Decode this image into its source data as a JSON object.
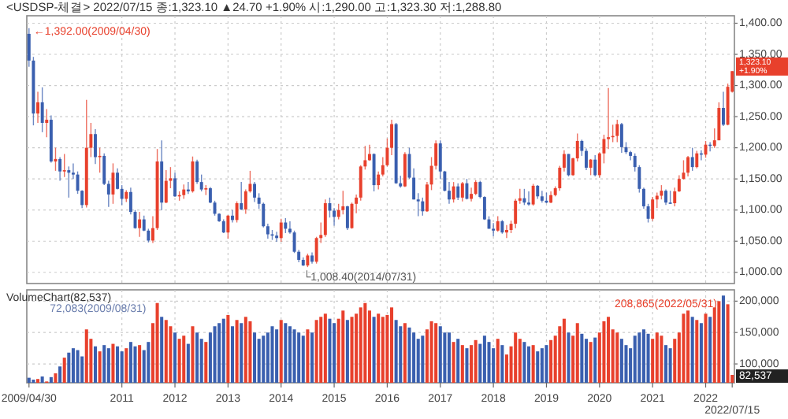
{
  "chart_data": [
    {
      "type": "candlestick",
      "title": "<USDSP-체결> 2022/07/15 종:1,323.10 ▲24.70 +1.90% 시:1,290.00 고:1,323.30 저:1,288.80",
      "categories": [
        "2009/04/30",
        null,
        null,
        null,
        null,
        null,
        null,
        null,
        null,
        null,
        null,
        null,
        null,
        null,
        null,
        null,
        null,
        null,
        null,
        null,
        null,
        "2011",
        null,
        null,
        null,
        null,
        null,
        null,
        null,
        null,
        null,
        null,
        null,
        "2012",
        null,
        null,
        null,
        null,
        null,
        null,
        null,
        null,
        null,
        null,
        null,
        "2013",
        null,
        null,
        null,
        null,
        null,
        null,
        null,
        null,
        null,
        null,
        null,
        "2014",
        null,
        null,
        null,
        null,
        null,
        null,
        null,
        null,
        null,
        null,
        null,
        "2015",
        null,
        null,
        null,
        null,
        null,
        null,
        null,
        null,
        null,
        null,
        null,
        "2016",
        null,
        null,
        null,
        null,
        null,
        null,
        null,
        null,
        null,
        null,
        null,
        "2017",
        null,
        null,
        null,
        null,
        null,
        null,
        null,
        null,
        null,
        null,
        null,
        "2018",
        null,
        null,
        null,
        null,
        null,
        null,
        null,
        null,
        null,
        null,
        null,
        "2019",
        null,
        null,
        null,
        null,
        null,
        null,
        null,
        null,
        null,
        null,
        null,
        "2020",
        null,
        null,
        null,
        null,
        null,
        null,
        null,
        null,
        null,
        null,
        null,
        "2021",
        null,
        null,
        null,
        null,
        null,
        null,
        null,
        null,
        null,
        null,
        null,
        "2022",
        null,
        null,
        null,
        null,
        null,
        "2022/07/15"
      ],
      "ohlc": [
        [
          1383,
          1392,
          1330,
          1340
        ],
        [
          1340,
          1346,
          1236,
          1255
        ],
        [
          1255,
          1290,
          1240,
          1273
        ],
        [
          1273,
          1297,
          1225,
          1240
        ],
        [
          1240,
          1262,
          1217,
          1245
        ],
        [
          1245,
          1252,
          1176,
          1178
        ],
        [
          1178,
          1200,
          1163,
          1182
        ],
        [
          1182,
          1185,
          1147,
          1162
        ],
        [
          1162,
          1190,
          1153,
          1164
        ],
        [
          1164,
          1170,
          1120,
          1160
        ],
        [
          1160,
          1175,
          1150,
          1157
        ],
        [
          1157,
          1162,
          1126,
          1131
        ],
        [
          1131,
          1132,
          1103,
          1108
        ],
        [
          1108,
          1277,
          1104,
          1200
        ],
        [
          1200,
          1240,
          1185,
          1222
        ],
        [
          1222,
          1230,
          1174,
          1185
        ],
        [
          1185,
          1200,
          1160,
          1187
        ],
        [
          1187,
          1191,
          1140,
          1142
        ],
        [
          1142,
          1147,
          1105,
          1125
        ],
        [
          1125,
          1175,
          1110,
          1160
        ],
        [
          1160,
          1167,
          1133,
          1134
        ],
        [
          1134,
          1140,
          1108,
          1118
        ],
        [
          1118,
          1132,
          1113,
          1129
        ],
        [
          1129,
          1136,
          1093,
          1097
        ],
        [
          1097,
          1100,
          1070,
          1071
        ],
        [
          1071,
          1097,
          1057,
          1085
        ],
        [
          1085,
          1091,
          1066,
          1067
        ],
        [
          1067,
          1070,
          1048,
          1051
        ],
        [
          1051,
          1090,
          1047,
          1071
        ],
        [
          1071,
          1198,
          1068,
          1178
        ],
        [
          1178,
          1212,
          1100,
          1112
        ],
        [
          1112,
          1164,
          1111,
          1147
        ],
        [
          1147,
          1169,
          1135,
          1151
        ],
        [
          1151,
          1160,
          1121,
          1122
        ],
        [
          1122,
          1130,
          1115,
          1124
        ],
        [
          1124,
          1141,
          1118,
          1133
        ],
        [
          1133,
          1145,
          1126,
          1130
        ],
        [
          1130,
          1186,
          1128,
          1178
        ],
        [
          1178,
          1181,
          1142,
          1145
        ],
        [
          1145,
          1157,
          1130,
          1133
        ],
        [
          1133,
          1140,
          1124,
          1135
        ],
        [
          1135,
          1137,
          1111,
          1112
        ],
        [
          1112,
          1115,
          1091,
          1094
        ],
        [
          1094,
          1095,
          1081,
          1082
        ],
        [
          1082,
          1085,
          1063,
          1064
        ],
        [
          1064,
          1092,
          1054,
          1091
        ],
        [
          1091,
          1100,
          1080,
          1084
        ],
        [
          1084,
          1114,
          1080,
          1111
        ],
        [
          1111,
          1145,
          1100,
          1101
        ],
        [
          1101,
          1133,
          1094,
          1130
        ],
        [
          1130,
          1163,
          1128,
          1142
        ],
        [
          1142,
          1145,
          1113,
          1120
        ],
        [
          1120,
          1127,
          1102,
          1110
        ],
        [
          1110,
          1112,
          1072,
          1074
        ],
        [
          1074,
          1078,
          1054,
          1061
        ],
        [
          1061,
          1068,
          1052,
          1059
        ],
        [
          1059,
          1065,
          1049,
          1055
        ],
        [
          1055,
          1086,
          1049,
          1080
        ],
        [
          1080,
          1087,
          1063,
          1070
        ],
        [
          1070,
          1082,
          1062,
          1064
        ],
        [
          1064,
          1067,
          1031,
          1033
        ],
        [
          1033,
          1036,
          1016,
          1020
        ],
        [
          1020,
          1024,
          1010,
          1011
        ],
        [
          1011,
          1030,
          1008.4,
          1027
        ],
        [
          1027,
          1032,
          1014,
          1017
        ],
        [
          1017,
          1057,
          1014,
          1055
        ],
        [
          1055,
          1080,
          1047,
          1060
        ],
        [
          1060,
          1117,
          1057,
          1111
        ],
        [
          1111,
          1120,
          1088,
          1099
        ],
        [
          1099,
          1103,
          1075,
          1089
        ],
        [
          1089,
          1110,
          1085,
          1100
        ],
        [
          1100,
          1131,
          1093,
          1106
        ],
        [
          1106,
          1107,
          1068,
          1071
        ],
        [
          1071,
          1112,
          1070,
          1110
        ],
        [
          1110,
          1125,
          1095,
          1120
        ],
        [
          1120,
          1172,
          1115,
          1170
        ],
        [
          1170,
          1203,
          1165,
          1180
        ],
        [
          1180,
          1205,
          1179,
          1190
        ],
        [
          1190,
          1191,
          1130,
          1140
        ],
        [
          1140,
          1162,
          1133,
          1157
        ],
        [
          1157,
          1185,
          1154,
          1172
        ],
        [
          1172,
          1215,
          1170,
          1200
        ],
        [
          1200,
          1245,
          1188,
          1238
        ],
        [
          1238,
          1240,
          1142,
          1143
        ],
        [
          1143,
          1155,
          1136,
          1138
        ],
        [
          1138,
          1193,
          1137,
          1190
        ],
        [
          1190,
          1200,
          1150,
          1152
        ],
        [
          1152,
          1167,
          1117,
          1117
        ],
        [
          1117,
          1127,
          1090,
          1114
        ],
        [
          1114,
          1120,
          1091,
          1098
        ],
        [
          1098,
          1145,
          1097,
          1141
        ],
        [
          1141,
          1185,
          1132,
          1171
        ],
        [
          1171,
          1212,
          1165,
          1207
        ],
        [
          1207,
          1212,
          1150,
          1162
        ],
        [
          1162,
          1163,
          1130,
          1131
        ],
        [
          1131,
          1145,
          1110,
          1117
        ],
        [
          1117,
          1145,
          1112,
          1138
        ],
        [
          1138,
          1143,
          1116,
          1120
        ],
        [
          1120,
          1145,
          1114,
          1143
        ],
        [
          1143,
          1150,
          1117,
          1118
        ],
        [
          1118,
          1136,
          1114,
          1126
        ],
        [
          1126,
          1148,
          1124,
          1145
        ],
        [
          1145,
          1147,
          1119,
          1121
        ],
        [
          1121,
          1122,
          1084,
          1085
        ],
        [
          1085,
          1090,
          1070,
          1070
        ],
        [
          1070,
          1079,
          1058,
          1067
        ],
        [
          1067,
          1090,
          1065,
          1082
        ],
        [
          1082,
          1084,
          1062,
          1064
        ],
        [
          1064,
          1076,
          1055,
          1068
        ],
        [
          1068,
          1083,
          1063,
          1078
        ],
        [
          1078,
          1118,
          1071,
          1115
        ],
        [
          1115,
          1134,
          1110,
          1119
        ],
        [
          1119,
          1134,
          1108,
          1112
        ],
        [
          1112,
          1130,
          1107,
          1109
        ],
        [
          1109,
          1142,
          1107,
          1139
        ],
        [
          1139,
          1140,
          1118,
          1122
        ],
        [
          1122,
          1131,
          1112,
          1115
        ],
        [
          1115,
          1128,
          1111,
          1112
        ],
        [
          1112,
          1130,
          1111,
          1124
        ],
        [
          1124,
          1138,
          1122,
          1135
        ],
        [
          1135,
          1171,
          1131,
          1168
        ],
        [
          1168,
          1196,
          1162,
          1190
        ],
        [
          1190,
          1190,
          1154,
          1156
        ],
        [
          1156,
          1184,
          1155,
          1183
        ],
        [
          1183,
          1223,
          1178,
          1211
        ],
        [
          1211,
          1213,
          1187,
          1195
        ],
        [
          1195,
          1199,
          1164,
          1168
        ],
        [
          1168,
          1182,
          1156,
          1181
        ],
        [
          1181,
          1188,
          1154,
          1156
        ],
        [
          1156,
          1193,
          1152,
          1191
        ],
        [
          1191,
          1221,
          1175,
          1214
        ],
        [
          1214,
          1296,
          1198,
          1217
        ],
        [
          1217,
          1237,
          1209,
          1219
        ],
        [
          1219,
          1245,
          1209,
          1238
        ],
        [
          1238,
          1240,
          1192,
          1201
        ],
        [
          1201,
          1209,
          1190,
          1193
        ],
        [
          1193,
          1195,
          1180,
          1187
        ],
        [
          1187,
          1191,
          1162,
          1169
        ],
        [
          1169,
          1172,
          1128,
          1134
        ],
        [
          1134,
          1136,
          1102,
          1106
        ],
        [
          1106,
          1110,
          1080,
          1086
        ],
        [
          1086,
          1121,
          1083,
          1117
        ],
        [
          1117,
          1128,
          1103,
          1123
        ],
        [
          1123,
          1140,
          1117,
          1131
        ],
        [
          1131,
          1133,
          1108,
          1112
        ],
        [
          1112,
          1131,
          1110,
          1111
        ],
        [
          1111,
          1136,
          1106,
          1130
        ],
        [
          1130,
          1156,
          1129,
          1150
        ],
        [
          1150,
          1180,
          1149,
          1160
        ],
        [
          1160,
          1187,
          1154,
          1185
        ],
        [
          1185,
          1200,
          1163,
          1169
        ],
        [
          1169,
          1195,
          1167,
          1191
        ],
        [
          1191,
          1196,
          1180,
          1189
        ],
        [
          1189,
          1211,
          1184,
          1205
        ],
        [
          1205,
          1209,
          1194,
          1203
        ],
        [
          1203,
          1231,
          1200,
          1212
        ],
        [
          1212,
          1273,
          1212,
          1264
        ],
        [
          1264,
          1290,
          1235,
          1237
        ],
        [
          1237,
          1303,
          1236,
          1298
        ],
        [
          1290,
          1323.3,
          1288.8,
          1323.1
        ]
      ],
      "ylim": [
        982,
        1412
      ],
      "yticks": [
        {
          "value": 1000,
          "label": "1,000.00"
        },
        {
          "value": 1050,
          "label": "1,050.00"
        },
        {
          "value": 1100,
          "label": "1,100.00"
        },
        {
          "value": 1150,
          "label": "1,150.00"
        },
        {
          "value": 1200,
          "label": "1,200.00"
        },
        {
          "value": 1250,
          "label": "1,250.00"
        },
        {
          "value": 1300,
          "label": "1,300.00"
        },
        {
          "value": 1350,
          "label": "1,350.00"
        },
        {
          "value": 1400,
          "label": "1,400.00"
        }
      ],
      "grid": true,
      "tick_labels": "y",
      "annotations": [
        "←1,392.00(2009/04/30)",
        "└1,008.40(2014/07/31)",
        "1,323.10",
        "+1.90%"
      ]
    },
    {
      "type": "bar",
      "title": "VolumeChart(82,537)",
      "categories": [
        "2009/04/30",
        null,
        null,
        null,
        null,
        null,
        null,
        null,
        null,
        null,
        null,
        null,
        null,
        null,
        null,
        null,
        null,
        null,
        null,
        null,
        null,
        "2011",
        null,
        null,
        null,
        null,
        null,
        null,
        null,
        null,
        null,
        null,
        null,
        "2012",
        null,
        null,
        null,
        null,
        null,
        null,
        null,
        null,
        null,
        null,
        null,
        "2013",
        null,
        null,
        null,
        null,
        null,
        null,
        null,
        null,
        null,
        null,
        null,
        "2014",
        null,
        null,
        null,
        null,
        null,
        null,
        null,
        null,
        null,
        null,
        null,
        "2015",
        null,
        null,
        null,
        null,
        null,
        null,
        null,
        null,
        null,
        null,
        null,
        "2016",
        null,
        null,
        null,
        null,
        null,
        null,
        null,
        null,
        null,
        null,
        null,
        "2017",
        null,
        null,
        null,
        null,
        null,
        null,
        null,
        null,
        null,
        null,
        null,
        "2018",
        null,
        null,
        null,
        null,
        null,
        null,
        null,
        null,
        null,
        null,
        null,
        "2019",
        null,
        null,
        null,
        null,
        null,
        null,
        null,
        null,
        null,
        null,
        null,
        "2020",
        null,
        null,
        null,
        null,
        null,
        null,
        null,
        null,
        null,
        null,
        null,
        "2021",
        null,
        null,
        null,
        null,
        null,
        null,
        null,
        null,
        null,
        null,
        null,
        "2022",
        null,
        null,
        null,
        null,
        null,
        "2022/07/15"
      ],
      "values": [
        78000,
        75000,
        76000,
        80000,
        72083,
        79000,
        85000,
        96000,
        110000,
        118000,
        125000,
        122000,
        112000,
        155000,
        140000,
        128000,
        120000,
        130000,
        125000,
        132000,
        128000,
        120000,
        125000,
        135000,
        128000,
        130000,
        122000,
        135000,
        165000,
        197000,
        175000,
        170000,
        160000,
        150000,
        140000,
        145000,
        132000,
        160000,
        150000,
        140000,
        135000,
        150000,
        160000,
        165000,
        172000,
        178000,
        160000,
        170000,
        165000,
        175000,
        168000,
        150000,
        140000,
        145000,
        150000,
        160000,
        155000,
        170000,
        165000,
        160000,
        155000,
        150000,
        145000,
        155000,
        150000,
        170000,
        175000,
        180000,
        172000,
        165000,
        172000,
        185000,
        170000,
        175000,
        180000,
        190000,
        197000,
        185000,
        175000,
        180000,
        175000,
        178000,
        190000,
        170000,
        160000,
        165000,
        158000,
        150000,
        140000,
        145000,
        155000,
        168000,
        165000,
        160000,
        150000,
        150000,
        135000,
        140000,
        130000,
        125000,
        130000,
        138000,
        132000,
        145000,
        135000,
        125000,
        140000,
        130000,
        115000,
        128000,
        150000,
        140000,
        135000,
        128000,
        130000,
        120000,
        125000,
        130000,
        138000,
        145000,
        160000,
        172000,
        150000,
        145000,
        165000,
        148000,
        140000,
        135000,
        142000,
        150000,
        168000,
        175000,
        155000,
        150000,
        140000,
        130000,
        125000,
        145000,
        150000,
        155000,
        148000,
        140000,
        150000,
        145000,
        130000,
        125000,
        140000,
        150000,
        180000,
        185000,
        175000,
        170000,
        165000,
        180000,
        175000,
        190000,
        200000,
        208865,
        195000,
        82537
      ],
      "colors": [
        "#3a5faf",
        "#3a5faf",
        "#e8402c",
        "#3a5faf",
        "#e8402c",
        "#3a5faf",
        "#e8402c",
        "#3a5faf",
        "#e8402c",
        "#3a5faf",
        "#3a5faf",
        "#3a5faf",
        "#3a5faf",
        "#e8402c",
        "#e8402c",
        "#3a5faf",
        "#e8402c",
        "#3a5faf",
        "#3a5faf",
        "#e8402c",
        "#3a5faf",
        "#3a5faf",
        "#e8402c",
        "#3a5faf",
        "#3a5faf",
        "#e8402c",
        "#3a5faf",
        "#3a5faf",
        "#e8402c",
        "#e8402c",
        "#3a5faf",
        "#e8402c",
        "#e8402c",
        "#3a5faf",
        "#e8402c",
        "#e8402c",
        "#3a5faf",
        "#e8402c",
        "#3a5faf",
        "#3a5faf",
        "#e8402c",
        "#3a5faf",
        "#3a5faf",
        "#3a5faf",
        "#3a5faf",
        "#e8402c",
        "#3a5faf",
        "#e8402c",
        "#3a5faf",
        "#e8402c",
        "#e8402c",
        "#3a5faf",
        "#3a5faf",
        "#3a5faf",
        "#3a5faf",
        "#3a5faf",
        "#3a5faf",
        "#e8402c",
        "#3a5faf",
        "#3a5faf",
        "#3a5faf",
        "#3a5faf",
        "#3a5faf",
        "#e8402c",
        "#3a5faf",
        "#e8402c",
        "#e8402c",
        "#e8402c",
        "#3a5faf",
        "#3a5faf",
        "#e8402c",
        "#e8402c",
        "#3a5faf",
        "#e8402c",
        "#e8402c",
        "#e8402c",
        "#e8402c",
        "#e8402c",
        "#3a5faf",
        "#e8402c",
        "#e8402c",
        "#e8402c",
        "#e8402c",
        "#3a5faf",
        "#3a5faf",
        "#e8402c",
        "#3a5faf",
        "#3a5faf",
        "#3a5faf",
        "#3a5faf",
        "#e8402c",
        "#e8402c",
        "#e8402c",
        "#3a5faf",
        "#3a5faf",
        "#3a5faf",
        "#e8402c",
        "#3a5faf",
        "#e8402c",
        "#3a5faf",
        "#e8402c",
        "#e8402c",
        "#3a5faf",
        "#3a5faf",
        "#3a5faf",
        "#3a5faf",
        "#e8402c",
        "#3a5faf",
        "#e8402c",
        "#e8402c",
        "#e8402c",
        "#e8402c",
        "#3a5faf",
        "#3a5faf",
        "#e8402c",
        "#3a5faf",
        "#3a5faf",
        "#3a5faf",
        "#e8402c",
        "#e8402c",
        "#e8402c",
        "#e8402c",
        "#3a5faf",
        "#e8402c",
        "#e8402c",
        "#3a5faf",
        "#3a5faf",
        "#e8402c",
        "#3a5faf",
        "#e8402c",
        "#e8402c",
        "#e8402c",
        "#e8402c",
        "#e8402c",
        "#3a5faf",
        "#3a5faf",
        "#3a5faf",
        "#3a5faf",
        "#3a5faf",
        "#3a5faf",
        "#3a5faf",
        "#e8402c",
        "#e8402c",
        "#e8402c",
        "#3a5faf",
        "#3a5faf",
        "#e8402c",
        "#e8402c",
        "#e8402c",
        "#e8402c",
        "#3a5faf",
        "#e8402c",
        "#3a5faf",
        "#e8402c",
        "#3a5faf",
        "#e8402c",
        "#e8402c",
        "#3a5faf",
        "#e8402c",
        "#e8402c"
      ],
      "ylim": [
        70000,
        218000
      ],
      "yticks": [
        {
          "value": 100000,
          "label": "100,000"
        },
        {
          "value": 150000,
          "label": "150,000"
        },
        {
          "value": 200000,
          "label": "200,000"
        }
      ],
      "grid": true,
      "annotations": [
        "72,083(2009/08/31)",
        "208,865(2022/05/31)",
        "82,537"
      ]
    }
  ]
}
